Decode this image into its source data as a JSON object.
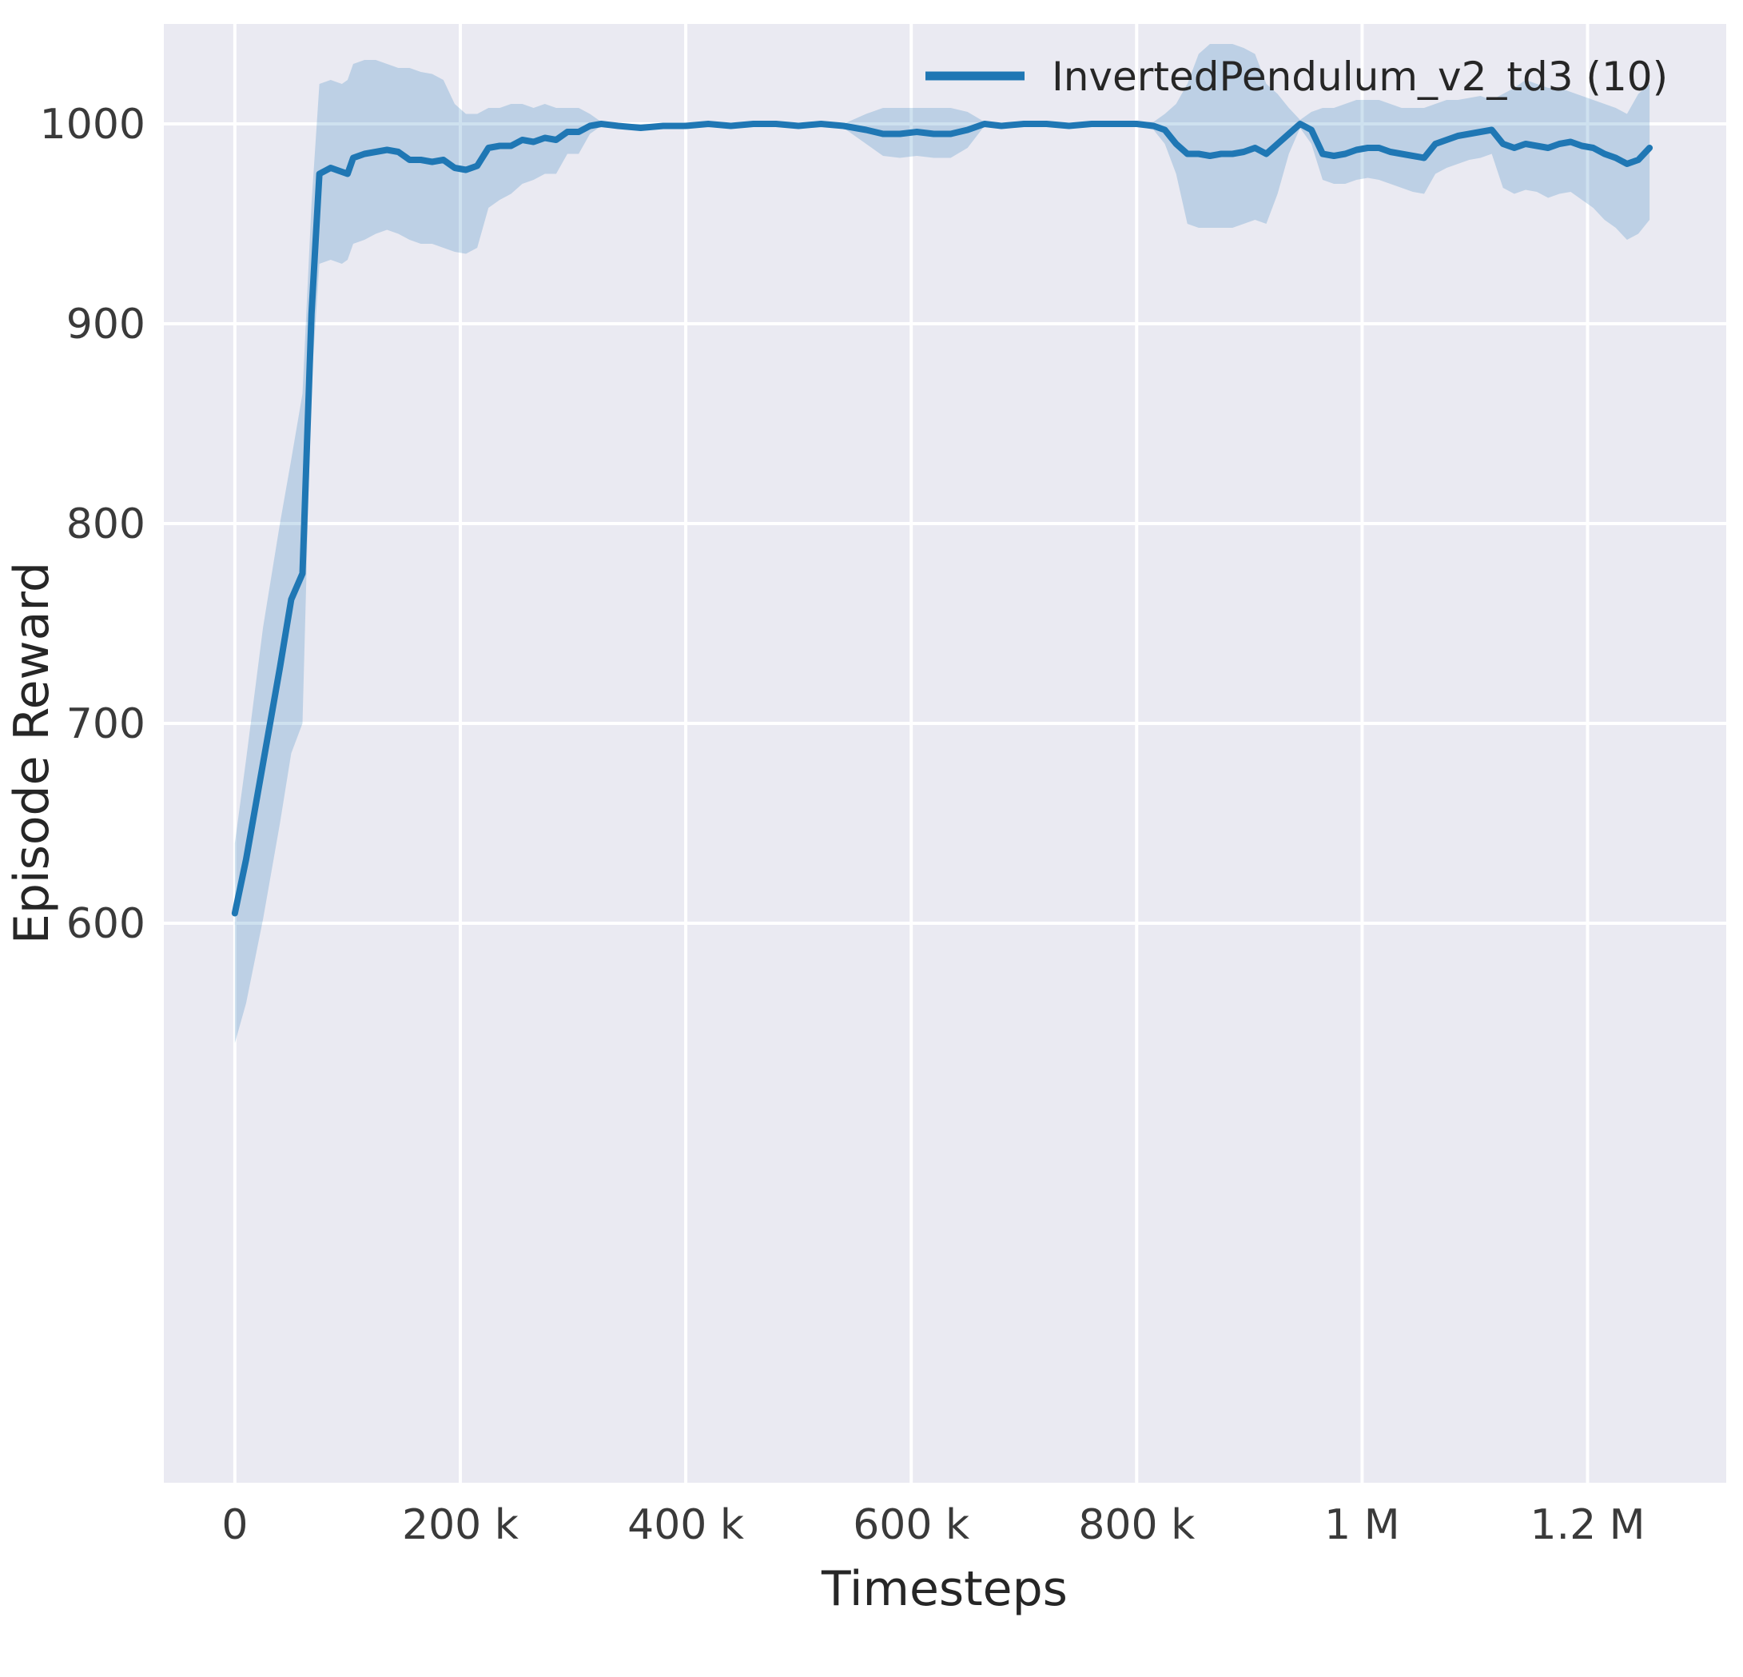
{
  "figure": {
    "background": "#ffffff",
    "plot_background": "#eaeaf2",
    "grid_color": "#ffffff",
    "text_color": "#262626"
  },
  "chart_data": {
    "type": "line",
    "title": "",
    "xlabel": "Timesteps",
    "ylabel": "Episode Reward",
    "grid": true,
    "legend_position": "upper right",
    "xlim": [
      -63000,
      1323000
    ],
    "ylim": [
      320,
      1050
    ],
    "x_ticks": {
      "values": [
        0,
        200000,
        400000,
        600000,
        800000,
        1000000,
        1200000
      ],
      "labels": [
        "0",
        "200 k",
        "400 k",
        "600 k",
        "800 k",
        "1 M",
        "1.2 M"
      ]
    },
    "y_ticks": {
      "values": [
        600,
        700,
        800,
        900,
        1000
      ],
      "labels": [
        "600",
        "700",
        "800",
        "900",
        "1000"
      ]
    },
    "series": [
      {
        "name": "InvertedPendulum_v2_td3 (10)",
        "color": "#1f77b4",
        "band_color": "#1f77b4",
        "band_opacity": 0.22,
        "x": [
          0,
          10000,
          25000,
          40000,
          50000,
          60000,
          68000,
          75000,
          85000,
          95000,
          100000,
          105000,
          115000,
          125000,
          135000,
          145000,
          155000,
          165000,
          175000,
          185000,
          195000,
          205000,
          215000,
          225000,
          235000,
          245000,
          255000,
          265000,
          275000,
          285000,
          295000,
          305000,
          315000,
          325000,
          340000,
          360000,
          380000,
          400000,
          420000,
          440000,
          460000,
          480000,
          500000,
          520000,
          540000,
          560000,
          575000,
          590000,
          605000,
          620000,
          635000,
          650000,
          665000,
          680000,
          700000,
          720000,
          740000,
          760000,
          780000,
          800000,
          815000,
          825000,
          835000,
          845000,
          855000,
          865000,
          875000,
          885000,
          895000,
          905000,
          915000,
          925000,
          935000,
          945000,
          955000,
          965000,
          975000,
          985000,
          995000,
          1005000,
          1015000,
          1025000,
          1035000,
          1045000,
          1055000,
          1065000,
          1075000,
          1085000,
          1095000,
          1105000,
          1115000,
          1125000,
          1135000,
          1145000,
          1155000,
          1165000,
          1175000,
          1185000,
          1195000,
          1205000,
          1215000,
          1225000,
          1235000,
          1245000,
          1255000
        ],
        "y": [
          605,
          632,
          680,
          728,
          762,
          775,
          905,
          975,
          978,
          976,
          975,
          983,
          985,
          986,
          987,
          986,
          982,
          982,
          981,
          982,
          978,
          977,
          979,
          988,
          989,
          989,
          992,
          991,
          993,
          992,
          996,
          996,
          999,
          1000,
          999,
          998,
          999,
          999,
          1000,
          999,
          1000,
          1000,
          999,
          1000,
          999,
          997,
          995,
          995,
          996,
          995,
          995,
          997,
          1000,
          999,
          1000,
          1000,
          999,
          1000,
          1000,
          1000,
          999,
          997,
          990,
          985,
          985,
          984,
          985,
          985,
          986,
          988,
          985,
          990,
          995,
          1000,
          997,
          985,
          984,
          985,
          987,
          988,
          988,
          986,
          985,
          984,
          983,
          990,
          992,
          994,
          995,
          996,
          997,
          990,
          988,
          990,
          989,
          988,
          990,
          991,
          989,
          988,
          985,
          983,
          980,
          982,
          988
        ],
        "band_lower": [
          540,
          560,
          602,
          650,
          685,
          700,
          870,
          930,
          932,
          930,
          932,
          940,
          942,
          945,
          947,
          945,
          942,
          940,
          940,
          938,
          936,
          935,
          938,
          958,
          962,
          965,
          970,
          972,
          975,
          975,
          985,
          985,
          995,
          999,
          998,
          997,
          998,
          998,
          999,
          998,
          999,
          999,
          998,
          999,
          998,
          990,
          984,
          983,
          984,
          983,
          983,
          988,
          999,
          998,
          999,
          999,
          998,
          999,
          999,
          999,
          997,
          990,
          975,
          950,
          948,
          948,
          948,
          948,
          950,
          952,
          950,
          965,
          985,
          998,
          990,
          972,
          970,
          970,
          972,
          973,
          972,
          970,
          968,
          966,
          965,
          975,
          978,
          980,
          982,
          983,
          985,
          968,
          965,
          967,
          966,
          963,
          965,
          966,
          962,
          958,
          952,
          948,
          942,
          945,
          952
        ],
        "band_upper": [
          640,
          682,
          748,
          800,
          832,
          865,
          960,
          1020,
          1022,
          1020,
          1022,
          1030,
          1032,
          1032,
          1030,
          1028,
          1028,
          1026,
          1025,
          1022,
          1010,
          1005,
          1005,
          1008,
          1008,
          1010,
          1010,
          1008,
          1010,
          1008,
          1008,
          1008,
          1005,
          1001,
          1000,
          1000,
          1000,
          1000,
          1001,
          1000,
          1001,
          1001,
          1000,
          1001,
          1000,
          1005,
          1008,
          1008,
          1008,
          1008,
          1008,
          1006,
          1001,
          1000,
          1001,
          1001,
          1000,
          1001,
          1001,
          1001,
          1001,
          1005,
          1010,
          1020,
          1035,
          1040,
          1040,
          1040,
          1038,
          1035,
          1020,
          1015,
          1008,
          1002,
          1006,
          1008,
          1008,
          1010,
          1012,
          1012,
          1012,
          1010,
          1008,
          1008,
          1008,
          1010,
          1012,
          1012,
          1013,
          1014,
          1012,
          1015,
          1018,
          1022,
          1020,
          1018,
          1018,
          1016,
          1014,
          1012,
          1010,
          1008,
          1005,
          1015,
          1020
        ]
      }
    ]
  }
}
